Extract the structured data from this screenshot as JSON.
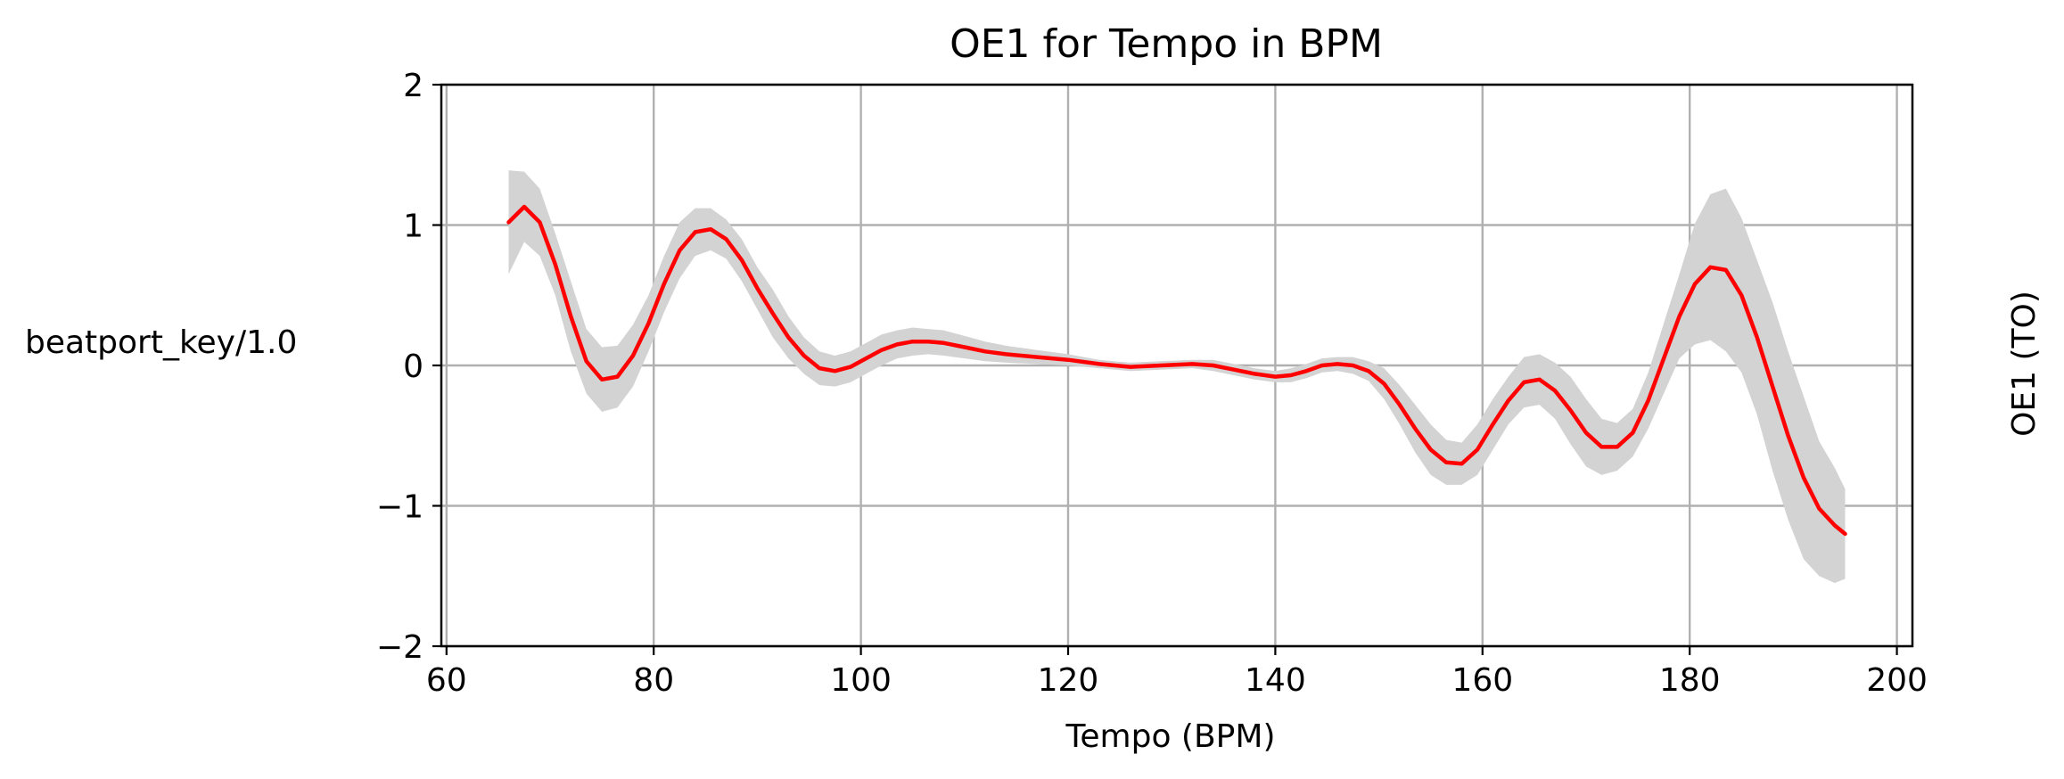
{
  "chart_data": {
    "type": "line",
    "title": "OE1 for Tempo in BPM",
    "xlabel": "Tempo (BPM)",
    "ylabel": "beatport_key/1.0",
    "right_label": "OE1 (TO)",
    "xlim": [
      59.5,
      201.5
    ],
    "ylim": [
      -2,
      2
    ],
    "xticks": [
      60,
      80,
      100,
      120,
      140,
      160,
      180,
      200
    ],
    "xtick_labels": [
      "60",
      "80",
      "100",
      "120",
      "140",
      "160",
      "180",
      "200"
    ],
    "yticks": [
      -2,
      -1,
      0,
      1,
      2
    ],
    "ytick_labels": [
      "−2",
      "−1",
      "0",
      "1",
      "2"
    ],
    "grid": true,
    "colors": {
      "line": "#ff0000",
      "band": "#d3d3d3",
      "grid": "#b0b0b0"
    },
    "series": [
      {
        "x": [
          66,
          67.5,
          69,
          70.5,
          72,
          73.5,
          75,
          76.5,
          78,
          79.5,
          81,
          82.5,
          84,
          85.5,
          87,
          88.5,
          90,
          91.5,
          93,
          94.5,
          96,
          97.5,
          99,
          100.5,
          102,
          103.5,
          105,
          106.5,
          108,
          110,
          112,
          114,
          117,
          120,
          123,
          126,
          129,
          132,
          134,
          136,
          138,
          140,
          141.5,
          143,
          144.5,
          146,
          147.5,
          149,
          150.5,
          152,
          153.5,
          155,
          156.5,
          158,
          159.5,
          161,
          162.5,
          164,
          165.5,
          167,
          168.5,
          170,
          171.5,
          173,
          174.5,
          176,
          177.5,
          179,
          180.5,
          182,
          183.5,
          185,
          186.5,
          188,
          189.5,
          191,
          192.5,
          194,
          195
        ],
        "y": [
          1.02,
          1.13,
          1.02,
          0.72,
          0.35,
          0.03,
          -0.1,
          -0.08,
          0.07,
          0.3,
          0.58,
          0.82,
          0.95,
          0.97,
          0.9,
          0.75,
          0.55,
          0.37,
          0.2,
          0.07,
          -0.02,
          -0.04,
          -0.01,
          0.05,
          0.11,
          0.15,
          0.17,
          0.17,
          0.16,
          0.13,
          0.1,
          0.08,
          0.06,
          0.04,
          0.01,
          -0.01,
          0.0,
          0.01,
          0.0,
          -0.03,
          -0.06,
          -0.08,
          -0.07,
          -0.04,
          0.0,
          0.01,
          0.0,
          -0.04,
          -0.13,
          -0.28,
          -0.45,
          -0.6,
          -0.69,
          -0.7,
          -0.6,
          -0.42,
          -0.25,
          -0.12,
          -0.1,
          -0.18,
          -0.32,
          -0.48,
          -0.58,
          -0.58,
          -0.48,
          -0.25,
          0.05,
          0.35,
          0.58,
          0.7,
          0.68,
          0.5,
          0.2,
          -0.15,
          -0.5,
          -0.8,
          -1.02,
          -1.14,
          -1.2
        ]
      }
    ],
    "band_lower": [
      0.65,
      0.88,
      0.78,
      0.5,
      0.1,
      -0.2,
      -0.33,
      -0.3,
      -0.15,
      0.1,
      0.38,
      0.62,
      0.78,
      0.82,
      0.76,
      0.6,
      0.4,
      0.2,
      0.05,
      -0.06,
      -0.14,
      -0.15,
      -0.12,
      -0.06,
      0.0,
      0.05,
      0.07,
      0.08,
      0.07,
      0.05,
      0.03,
      0.02,
      0.01,
      0.0,
      -0.02,
      -0.04,
      -0.03,
      -0.02,
      -0.04,
      -0.07,
      -0.1,
      -0.12,
      -0.12,
      -0.09,
      -0.05,
      -0.04,
      -0.06,
      -0.11,
      -0.24,
      -0.42,
      -0.62,
      -0.78,
      -0.85,
      -0.85,
      -0.78,
      -0.6,
      -0.42,
      -0.3,
      -0.28,
      -0.38,
      -0.56,
      -0.72,
      -0.78,
      -0.75,
      -0.65,
      -0.45,
      -0.2,
      0.05,
      0.15,
      0.18,
      0.1,
      -0.05,
      -0.35,
      -0.75,
      -1.1,
      -1.38,
      -1.5,
      -1.55,
      -1.52
    ]
  }
}
